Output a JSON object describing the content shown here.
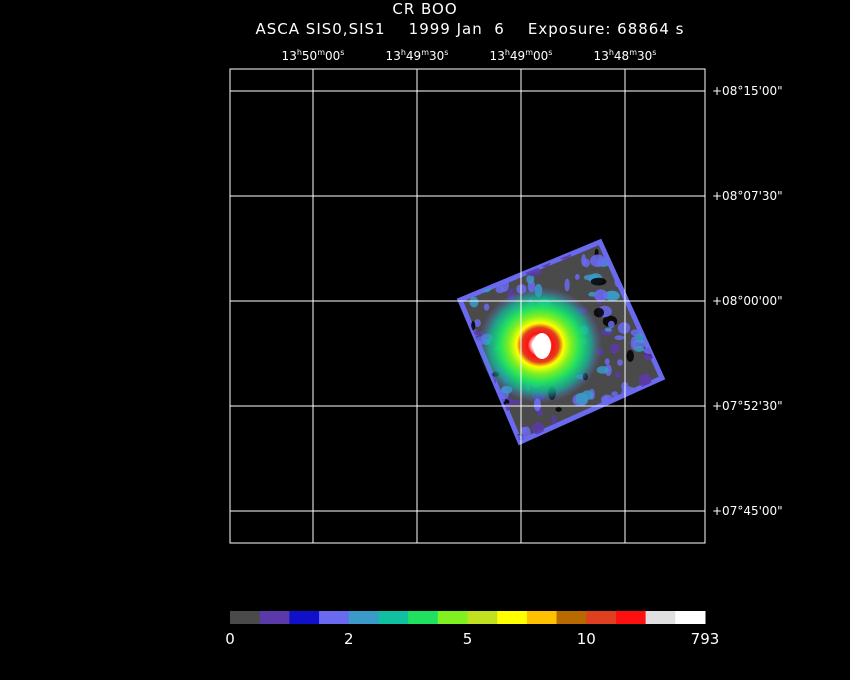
{
  "header": {
    "object": "CR BOO",
    "instrument": "ASCA SIS0,SIS1",
    "date": "1999 Jan  6",
    "exposure": "Exposure: 68864 s"
  },
  "ra_ticks": [
    {
      "h": "13",
      "m": "50",
      "s": "00"
    },
    {
      "h": "13",
      "m": "49",
      "s": "30"
    },
    {
      "h": "13",
      "m": "49",
      "s": "00"
    },
    {
      "h": "13",
      "m": "48",
      "s": "30"
    }
  ],
  "dec_ticks": [
    "+08°15'00\"",
    "+08°07'30\"",
    "+08°00'00\"",
    "+07°52'30\"",
    "+07°45'00\""
  ],
  "colorbar": {
    "colors": [
      "#4a4a4a",
      "#5a3aa8",
      "#1010c8",
      "#6a6af0",
      "#3a9ac8",
      "#10c0a0",
      "#20e060",
      "#80f020",
      "#c0e020",
      "#ffff00",
      "#ffc000",
      "#b86a00",
      "#e04020",
      "#ff1010",
      "#e0e0e0",
      "#ffffff"
    ],
    "labels": [
      "0",
      "2",
      "5",
      "10",
      "793"
    ]
  },
  "colors": {
    "background": "#000000",
    "grid": "#ffffff"
  }
}
